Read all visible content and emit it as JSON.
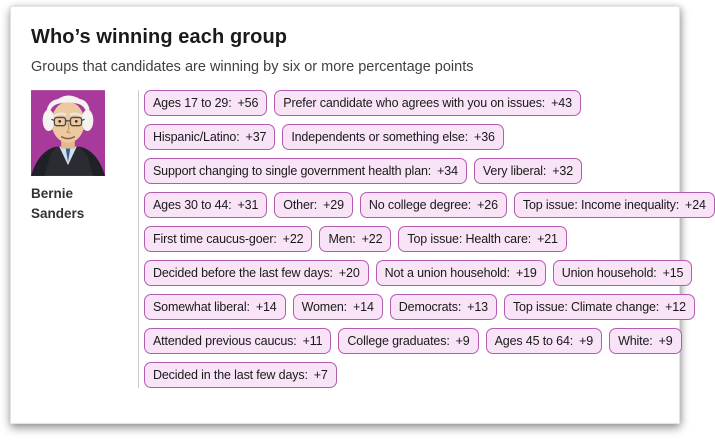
{
  "colors": {
    "pill_bg": "#f9e3f6",
    "pill_border": "#b55cb2",
    "portrait_bg": "#a83a9c"
  },
  "chart_data": {
    "type": "table",
    "title": "Who’s winning each group",
    "subtitle": "Groups that candidates are winning by six or more percentage points",
    "candidate": {
      "first": "Bernie",
      "last": "Sanders",
      "full": "Bernie Sanders"
    },
    "unit": "percentage points margin",
    "rows": [
      [
        {
          "label": "Ages 17 to 29",
          "margin": "+56"
        },
        {
          "label": "Prefer candidate who agrees with you on issues",
          "margin": "+43"
        }
      ],
      [
        {
          "label": "Hispanic/Latino",
          "margin": "+37"
        },
        {
          "label": "Independents or something else",
          "margin": "+36"
        }
      ],
      [
        {
          "label": "Support changing to single government health plan",
          "margin": "+34"
        },
        {
          "label": "Very liberal",
          "margin": "+32"
        }
      ],
      [
        {
          "label": "Ages 30 to 44",
          "margin": "+31"
        },
        {
          "label": "Other",
          "margin": "+29"
        },
        {
          "label": "No college degree",
          "margin": "+26"
        },
        {
          "label": "Top issue: Income inequality",
          "margin": "+24"
        }
      ],
      [
        {
          "label": "First time caucus-goer",
          "margin": "+22"
        },
        {
          "label": "Men",
          "margin": "+22"
        },
        {
          "label": "Top issue: Health care",
          "margin": "+21"
        }
      ],
      [
        {
          "label": "Decided before the last few days",
          "margin": "+20"
        },
        {
          "label": "Not a union household",
          "margin": "+19"
        },
        {
          "label": "Union household",
          "margin": "+15"
        }
      ],
      [
        {
          "label": "Somewhat liberal",
          "margin": "+14"
        },
        {
          "label": "Women",
          "margin": "+14"
        },
        {
          "label": "Democrats",
          "margin": "+13"
        },
        {
          "label": "Top issue: Climate change",
          "margin": "+12"
        }
      ],
      [
        {
          "label": "Attended previous caucus",
          "margin": "+11"
        },
        {
          "label": "College graduates",
          "margin": "+9"
        },
        {
          "label": "Ages 45 to 64",
          "margin": "+9"
        },
        {
          "label": "White",
          "margin": "+9"
        }
      ],
      [
        {
          "label": "Decided in the last few days",
          "margin": "+7"
        }
      ]
    ]
  }
}
